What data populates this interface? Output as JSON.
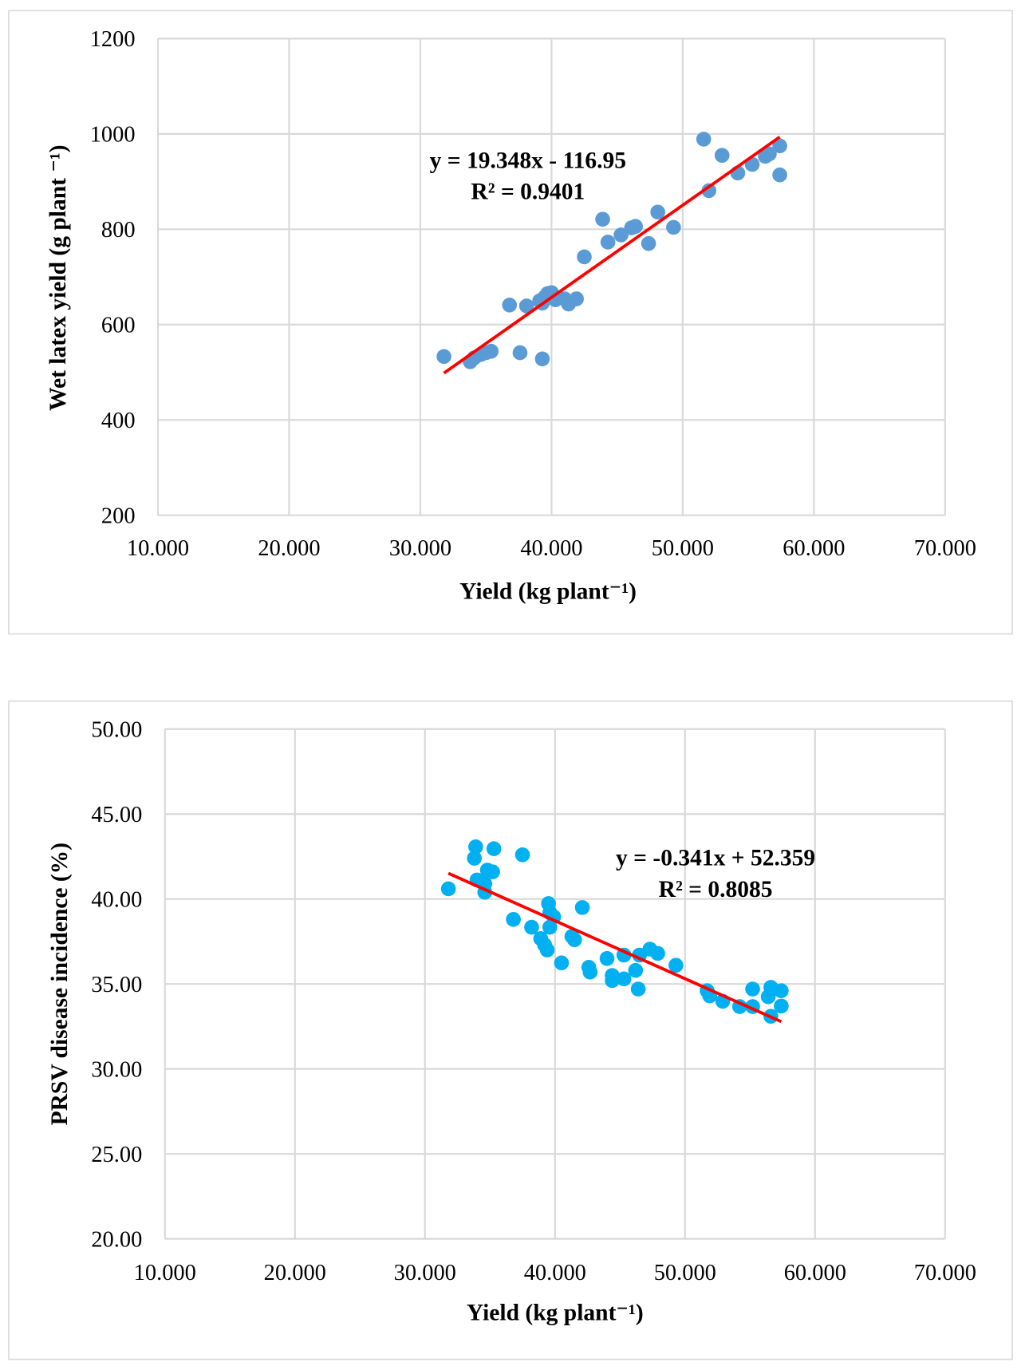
{
  "chart_data": [
    {
      "type": "scatter",
      "xlabel": "Yield (kg plant⁻¹)",
      "ylabel": "Wet latex yield (g plant ⁻¹)",
      "xlim": [
        10,
        70
      ],
      "ylim": [
        200,
        1200
      ],
      "xticks": [
        "10.000",
        "20.000",
        "30.000",
        "40.000",
        "50.000",
        "60.000",
        "70.000"
      ],
      "yticks": [
        "200",
        "400",
        "600",
        "800",
        "1000",
        "1200"
      ],
      "grid": true,
      "marker_color": "#5b9bd5",
      "trend_color": "#ff0000",
      "trendline": {
        "slope": 19.348,
        "intercept": -116.95,
        "equation": "y = 19.348x - 116.95",
        "r2": "R² = 0.9401"
      },
      "points": [
        [
          31.8,
          533
        ],
        [
          33.8,
          522
        ],
        [
          34.1,
          530
        ],
        [
          34.6,
          537
        ],
        [
          35.0,
          541
        ],
        [
          35.4,
          544
        ],
        [
          37.6,
          541
        ],
        [
          39.3,
          528
        ],
        [
          36.8,
          641
        ],
        [
          38.1,
          639
        ],
        [
          39.1,
          650
        ],
        [
          39.5,
          658
        ],
        [
          39.7,
          665
        ],
        [
          40.0,
          667
        ],
        [
          39.3,
          645
        ],
        [
          40.3,
          652
        ],
        [
          41.3,
          643
        ],
        [
          41.9,
          654
        ],
        [
          41.0,
          654
        ],
        [
          42.5,
          742
        ],
        [
          43.9,
          821
        ],
        [
          44.3,
          773
        ],
        [
          45.3,
          788
        ],
        [
          46.1,
          803
        ],
        [
          46.4,
          806
        ],
        [
          47.4,
          770
        ],
        [
          48.1,
          836
        ],
        [
          49.3,
          804
        ],
        [
          51.6,
          989
        ],
        [
          52.0,
          881
        ],
        [
          53.0,
          955
        ],
        [
          54.2,
          918
        ],
        [
          55.3,
          936
        ],
        [
          56.3,
          953
        ],
        [
          56.6,
          958
        ],
        [
          57.4,
          975
        ],
        [
          57.4,
          914
        ]
      ]
    },
    {
      "type": "scatter",
      "xlabel": "Yield (kg plant⁻¹)",
      "ylabel": "PRSV disease incidence (%)",
      "xlim": [
        10,
        70
      ],
      "ylim": [
        20,
        50
      ],
      "xticks": [
        "10.000",
        "20.000",
        "30.000",
        "40.000",
        "50.000",
        "60.000",
        "70.000"
      ],
      "yticks": [
        "20.00",
        "25.00",
        "30.00",
        "35.00",
        "40.00",
        "45.00",
        "50.00"
      ],
      "grid": true,
      "marker_color": "#00b0f0",
      "trend_color": "#ff0000",
      "trendline": {
        "slope": -0.341,
        "intercept": 52.359,
        "equation": "y = -0.341x + 52.359",
        "r2": "R² = 0.8085"
      },
      "points": [
        [
          31.8,
          40.6
        ],
        [
          33.9,
          43.07
        ],
        [
          33.8,
          42.4
        ],
        [
          34.0,
          41.12
        ],
        [
          34.4,
          41.02
        ],
        [
          34.6,
          40.4
        ],
        [
          34.6,
          40.9
        ],
        [
          34.8,
          41.7
        ],
        [
          35.2,
          41.6
        ],
        [
          35.3,
          42.96
        ],
        [
          37.5,
          42.6
        ],
        [
          36.8,
          38.8
        ],
        [
          38.2,
          38.34
        ],
        [
          38.9,
          37.67
        ],
        [
          39.2,
          37.3
        ],
        [
          39.4,
          37.0
        ],
        [
          39.5,
          39.73
        ],
        [
          39.6,
          39.2
        ],
        [
          39.6,
          38.34
        ],
        [
          39.9,
          38.95
        ],
        [
          40.5,
          36.24
        ],
        [
          41.3,
          37.8
        ],
        [
          41.5,
          37.6
        ],
        [
          42.1,
          39.5
        ],
        [
          42.6,
          35.98
        ],
        [
          42.7,
          35.7
        ],
        [
          44.0,
          36.5
        ],
        [
          44.4,
          35.5
        ],
        [
          44.4,
          35.2
        ],
        [
          45.3,
          36.7
        ],
        [
          45.3,
          35.3
        ],
        [
          46.2,
          35.8
        ],
        [
          46.4,
          34.7
        ],
        [
          46.5,
          36.7
        ],
        [
          47.3,
          37.05
        ],
        [
          47.9,
          36.8
        ],
        [
          49.3,
          36.1
        ],
        [
          51.7,
          34.6
        ],
        [
          51.9,
          34.3
        ],
        [
          52.9,
          33.98
        ],
        [
          54.2,
          33.67
        ],
        [
          55.2,
          34.7
        ],
        [
          55.2,
          33.67
        ],
        [
          56.4,
          34.25
        ],
        [
          56.6,
          34.8
        ],
        [
          56.6,
          33.1
        ],
        [
          57.4,
          34.6
        ],
        [
          57.4,
          33.7
        ]
      ]
    }
  ]
}
